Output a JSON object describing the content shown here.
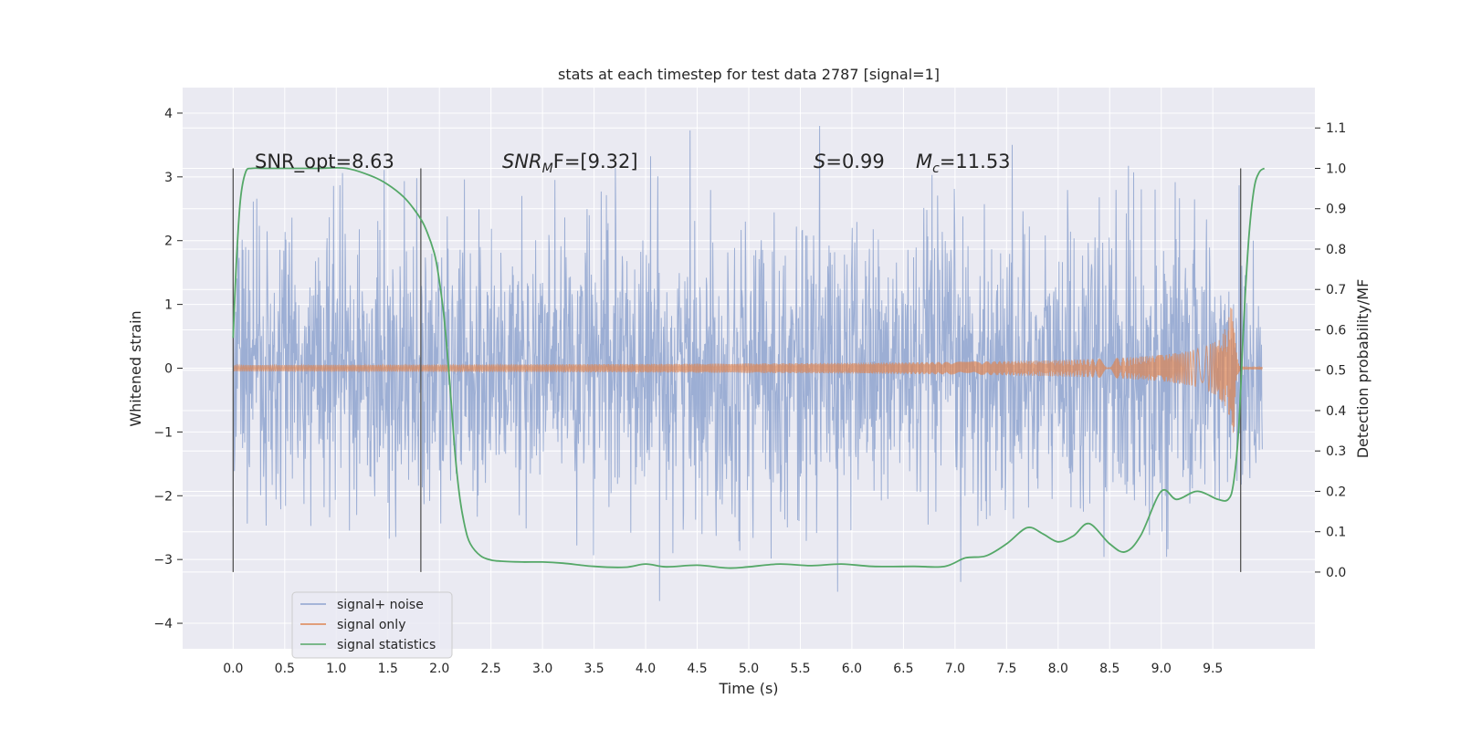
{
  "chart_data": {
    "type": "line",
    "title": "stats at each timestep for test data 2787 [signal=1]",
    "xlabel": "Time (s)",
    "ylabel_left": "Whitened strain",
    "ylabel_right": "Detection probability/MF",
    "xlim": [
      -0.49,
      10.49
    ],
    "ylim_left": [
      -4.4,
      4.4
    ],
    "ylim_right": [
      -0.19,
      1.2
    ],
    "x_ticks": [
      "0.0",
      "0.5",
      "1.0",
      "1.5",
      "2.0",
      "2.5",
      "3.0",
      "3.5",
      "4.0",
      "4.5",
      "5.0",
      "5.5",
      "6.0",
      "6.5",
      "7.0",
      "7.5",
      "8.0",
      "8.5",
      "9.0",
      "9.5"
    ],
    "y_ticks_left": [
      "4",
      "3",
      "2",
      "1",
      "0",
      "−1",
      "−2",
      "−3",
      "−4"
    ],
    "y_ticks_right": [
      "1.1",
      "1.0",
      "0.9",
      "0.8",
      "0.7",
      "0.6",
      "0.5",
      "0.4",
      "0.3",
      "0.2",
      "0.1",
      "0.0"
    ],
    "annotations": {
      "snr_opt": "SNR_opt=8.63",
      "snr_mf_main": "SNR",
      "snr_mf_sub": "M",
      "snr_mf_rest": "F=[9.32]",
      "s_main": "S",
      "s_rest": "=0.99",
      "mc_main": "M",
      "mc_sub": "c",
      "mc_rest": "=11.53"
    },
    "vertical_markers_x": [
      0.0,
      1.82,
      9.77
    ],
    "series": [
      {
        "name": "signal+ noise",
        "color": "#8ea3cf",
        "axis": "left",
        "kind": "noise",
        "x_range": [
          0.0,
          9.98
        ],
        "typical_amplitude": 1.8,
        "max_value": 3.95,
        "min_value": -3.65
      },
      {
        "name": "signal only",
        "color": "#dd8452",
        "axis": "left",
        "kind": "chirp",
        "x_range": [
          0.0,
          9.98
        ],
        "start_amplitude": 0.05,
        "peak_x": 9.7,
        "peak_amplitude": 1.4,
        "end_amplitude": 0.02
      },
      {
        "name": "signal statistics",
        "color": "#55a868",
        "axis": "right",
        "x": [
          0.0,
          0.03,
          0.07,
          0.12,
          0.18,
          0.3,
          0.5,
          0.8,
          1.1,
          1.35,
          1.5,
          1.65,
          1.75,
          1.85,
          1.95,
          2.0,
          2.05,
          2.1,
          2.15,
          2.2,
          2.25,
          2.3,
          2.4,
          2.5,
          2.6,
          2.8,
          3.0,
          3.2,
          3.5,
          3.8,
          4.0,
          4.2,
          4.5,
          4.8,
          5.0,
          5.3,
          5.6,
          5.9,
          6.2,
          6.6,
          6.9,
          7.1,
          7.3,
          7.5,
          7.7,
          7.85,
          8.0,
          8.15,
          8.3,
          8.5,
          8.65,
          8.8,
          9.0,
          9.15,
          9.35,
          9.55,
          9.65,
          9.7,
          9.75,
          9.8,
          9.85,
          9.9,
          9.95,
          10.0
        ],
        "values": [
          0.58,
          0.76,
          0.92,
          0.99,
          1.0,
          1.0,
          1.0,
          1.0,
          1.0,
          0.98,
          0.96,
          0.93,
          0.9,
          0.86,
          0.79,
          0.72,
          0.62,
          0.47,
          0.3,
          0.18,
          0.11,
          0.07,
          0.04,
          0.03,
          0.027,
          0.025,
          0.025,
          0.022,
          0.014,
          0.012,
          0.02,
          0.013,
          0.017,
          0.01,
          0.013,
          0.02,
          0.016,
          0.02,
          0.014,
          0.014,
          0.014,
          0.035,
          0.04,
          0.07,
          0.11,
          0.095,
          0.075,
          0.09,
          0.12,
          0.07,
          0.05,
          0.09,
          0.2,
          0.18,
          0.2,
          0.18,
          0.18,
          0.22,
          0.35,
          0.62,
          0.83,
          0.95,
          0.99,
          1.0
        ]
      }
    ],
    "legend_position": "lower-left",
    "grid": true
  }
}
